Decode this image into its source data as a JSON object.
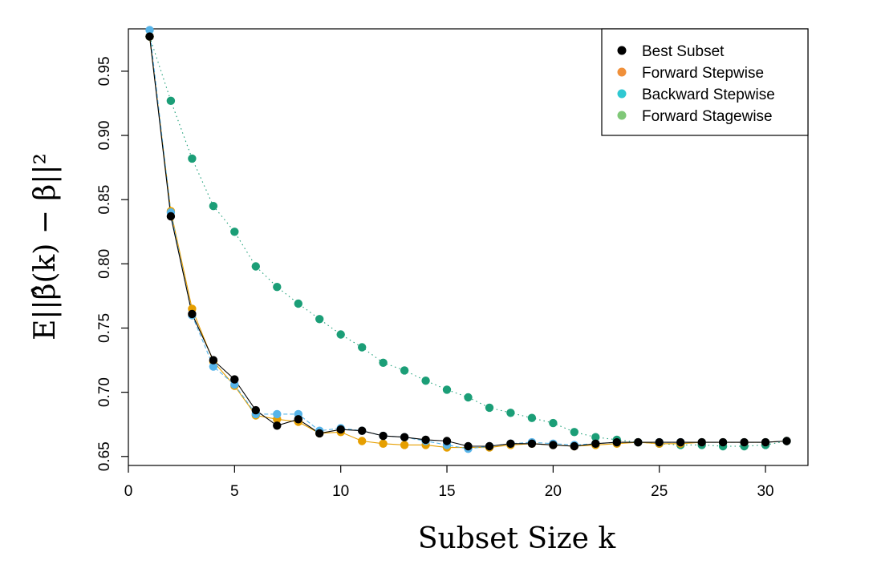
{
  "chart_data": {
    "type": "scatter",
    "xlabel": "Subset Size k",
    "ylabel": "E||β̂(k) − β||²",
    "xlim": [
      0,
      32
    ],
    "ylim": [
      0.643,
      0.983
    ],
    "xticks": [
      0,
      5,
      10,
      15,
      20,
      25,
      30
    ],
    "yticks": [
      0.65,
      0.7,
      0.75,
      0.8,
      0.85,
      0.9,
      0.95
    ],
    "ytick_labels": [
      "0.65",
      "0.70",
      "0.75",
      "0.80",
      "0.85",
      "0.90",
      "0.95"
    ],
    "legend_position": "top-right",
    "series": [
      {
        "name": "Forward Stagewise",
        "color": "#1b9e77",
        "line_style": "dotted",
        "x": [
          1,
          2,
          3,
          4,
          5,
          6,
          7,
          8,
          9,
          10,
          11,
          12,
          13,
          14,
          15,
          16,
          17,
          18,
          19,
          20,
          21,
          22,
          23,
          24,
          25,
          26,
          27,
          28,
          29,
          30,
          31
        ],
        "y": [
          0.977,
          0.927,
          0.882,
          0.845,
          0.825,
          0.798,
          0.782,
          0.769,
          0.757,
          0.745,
          0.735,
          0.723,
          0.717,
          0.709,
          0.702,
          0.696,
          0.688,
          0.684,
          0.68,
          0.676,
          0.669,
          0.665,
          0.663,
          0.661,
          0.66,
          0.659,
          0.659,
          0.658,
          0.658,
          0.659,
          0.662
        ]
      },
      {
        "name": "Forward Stepwise",
        "color": "#e69f00",
        "line_style": "solid",
        "x": [
          1,
          2,
          3,
          4,
          5,
          6,
          7,
          8,
          9,
          10,
          11,
          12,
          13,
          14,
          15,
          16,
          17,
          18,
          19,
          20,
          21,
          22,
          23,
          24,
          25,
          26,
          27,
          28,
          29,
          30,
          31
        ],
        "y": [
          0.977,
          0.841,
          0.765,
          0.724,
          0.705,
          0.682,
          0.679,
          0.677,
          0.668,
          0.669,
          0.662,
          0.66,
          0.659,
          0.659,
          0.657,
          0.657,
          0.657,
          0.659,
          0.66,
          0.659,
          0.658,
          0.659,
          0.66,
          0.661,
          0.66,
          0.66,
          0.661,
          0.661,
          0.661,
          0.661,
          0.662
        ]
      },
      {
        "name": "Backward Stepwise",
        "color": "#56b4e9",
        "line_style": "dashed",
        "x": [
          1,
          2,
          3,
          4,
          5,
          6,
          7,
          8,
          9,
          10,
          11,
          12,
          13,
          14,
          15,
          16,
          17,
          18,
          19,
          20,
          21,
          22,
          23,
          24,
          25,
          26,
          27,
          28,
          29,
          30,
          31
        ],
        "y": [
          0.982,
          0.84,
          0.76,
          0.72,
          0.706,
          0.683,
          0.683,
          0.683,
          0.67,
          0.672,
          0.67,
          0.666,
          0.665,
          0.662,
          0.659,
          0.656,
          0.658,
          0.66,
          0.661,
          0.66,
          0.659,
          0.66,
          0.661,
          0.661,
          0.661,
          0.661,
          0.661,
          0.661,
          0.661,
          0.661,
          0.662
        ]
      },
      {
        "name": "Best Subset",
        "color": "#000000",
        "line_style": "solid",
        "x": [
          1,
          2,
          3,
          4,
          5,
          6,
          7,
          8,
          9,
          10,
          11,
          12,
          13,
          14,
          15,
          16,
          17,
          18,
          19,
          20,
          21,
          22,
          23,
          24,
          25,
          26,
          27,
          28,
          29,
          30,
          31
        ],
        "y": [
          0.977,
          0.837,
          0.761,
          0.725,
          0.71,
          0.686,
          0.674,
          0.679,
          0.668,
          0.671,
          0.67,
          0.666,
          0.665,
          0.663,
          0.662,
          0.658,
          0.658,
          0.66,
          0.66,
          0.659,
          0.658,
          0.66,
          0.661,
          0.661,
          0.661,
          0.661,
          0.661,
          0.661,
          0.661,
          0.661,
          0.662
        ]
      }
    ],
    "legend": [
      {
        "label": "Best Subset",
        "color": "#000000"
      },
      {
        "label": "Forward Stepwise",
        "color": "#f0903a"
      },
      {
        "label": "Backward Stepwise",
        "color": "#30c8d2"
      },
      {
        "label": "Forward Stagewise",
        "color": "#80c878"
      }
    ]
  }
}
